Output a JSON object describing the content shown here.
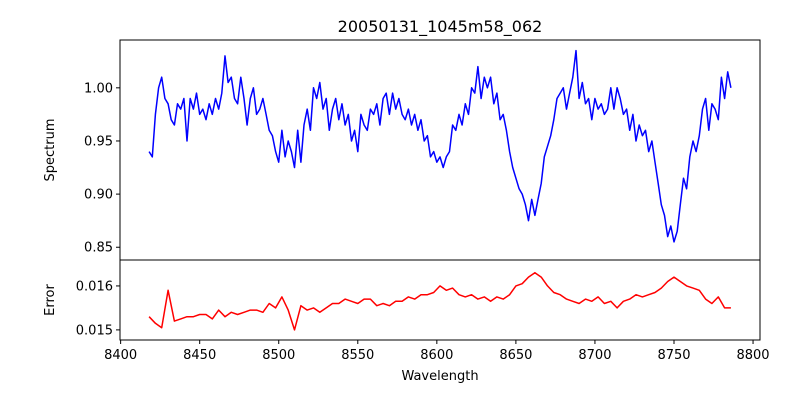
{
  "chart_data": [
    {
      "type": "line",
      "title": "20050131_1045m58_062",
      "xlabel": "",
      "ylabel": "Spectrum",
      "xlim": [
        8399.6,
        8804.4
      ],
      "ylim": [
        0.838,
        1.045
      ],
      "xticks": [
        8400,
        8450,
        8500,
        8550,
        8600,
        8650,
        8700,
        8750,
        8800
      ],
      "yticks": [
        0.85,
        0.9,
        0.95,
        1.0
      ],
      "ytick_labels": [
        "0.85",
        "0.90",
        "0.95",
        "1.00"
      ],
      "color": "#0000ff",
      "x_start": 8418,
      "x_step": 2,
      "values": [
        0.94,
        0.935,
        0.975,
        1.0,
        1.01,
        0.99,
        0.985,
        0.97,
        0.965,
        0.985,
        0.98,
        0.99,
        0.95,
        0.99,
        0.98,
        0.995,
        0.975,
        0.98,
        0.97,
        0.985,
        0.975,
        0.99,
        0.98,
        0.995,
        1.03,
        1.005,
        1.01,
        0.99,
        0.985,
        1.01,
        0.99,
        0.965,
        0.99,
        1.0,
        0.975,
        0.98,
        0.99,
        0.975,
        0.96,
        0.955,
        0.94,
        0.93,
        0.96,
        0.935,
        0.95,
        0.94,
        0.925,
        0.96,
        0.93,
        0.965,
        0.98,
        0.96,
        1.0,
        0.99,
        1.005,
        0.98,
        0.99,
        0.96,
        0.98,
        0.99,
        0.97,
        0.985,
        0.965,
        0.975,
        0.95,
        0.96,
        0.94,
        0.975,
        0.965,
        0.96,
        0.98,
        0.975,
        0.985,
        0.965,
        0.99,
        0.995,
        0.975,
        0.995,
        0.98,
        0.99,
        0.975,
        0.97,
        0.98,
        0.965,
        0.975,
        0.96,
        0.97,
        0.95,
        0.955,
        0.935,
        0.94,
        0.93,
        0.935,
        0.925,
        0.935,
        0.94,
        0.965,
        0.96,
        0.975,
        0.965,
        0.985,
        0.975,
        1.0,
        0.995,
        1.02,
        0.99,
        1.01,
        1.0,
        1.01,
        0.985,
        0.995,
        0.97,
        0.975,
        0.96,
        0.94,
        0.925,
        0.915,
        0.905,
        0.9,
        0.89,
        0.875,
        0.895,
        0.88,
        0.895,
        0.91,
        0.935,
        0.945,
        0.955,
        0.97,
        0.99,
        0.995,
        1.0,
        0.98,
        0.995,
        1.01,
        1.035,
        0.99,
        1.005,
        0.985,
        0.99,
        0.97,
        0.99,
        0.98,
        0.985,
        0.975,
        0.98,
        1.0,
        0.98,
        1.0,
        0.99,
        0.975,
        0.98,
        0.96,
        0.975,
        0.95,
        0.965,
        0.955,
        0.96,
        0.94,
        0.95,
        0.93,
        0.91,
        0.89,
        0.88,
        0.86,
        0.87,
        0.855,
        0.865,
        0.89,
        0.915,
        0.905,
        0.935,
        0.95,
        0.94,
        0.955,
        0.98,
        0.99,
        0.96,
        0.985,
        0.98,
        0.97,
        1.01,
        0.99,
        1.015,
        1.0
      ]
    },
    {
      "type": "line",
      "title": "",
      "xlabel": "Wavelength",
      "ylabel": "Error",
      "xlim": [
        8399.6,
        8804.4
      ],
      "ylim": [
        0.01477,
        0.01659
      ],
      "xticks": [
        8400,
        8450,
        8500,
        8550,
        8600,
        8650,
        8700,
        8750,
        8800
      ],
      "yticks": [
        0.015,
        0.016
      ],
      "ytick_labels": [
        "0.015",
        "0.016"
      ],
      "color": "#ff0000",
      "x_start": 8418,
      "x_step": 4,
      "values": [
        0.0153,
        0.01515,
        0.01505,
        0.0159,
        0.0152,
        0.01525,
        0.0153,
        0.0153,
        0.01535,
        0.01535,
        0.01525,
        0.01545,
        0.0153,
        0.0154,
        0.01535,
        0.0154,
        0.01545,
        0.01545,
        0.0154,
        0.0156,
        0.0155,
        0.01575,
        0.01545,
        0.015,
        0.01555,
        0.01545,
        0.0155,
        0.0154,
        0.0155,
        0.0156,
        0.0156,
        0.0157,
        0.01565,
        0.0156,
        0.0157,
        0.0157,
        0.01555,
        0.0156,
        0.01555,
        0.01565,
        0.01565,
        0.01575,
        0.0157,
        0.0158,
        0.0158,
        0.01585,
        0.016,
        0.0159,
        0.01595,
        0.0158,
        0.01575,
        0.0158,
        0.0157,
        0.01575,
        0.01565,
        0.01575,
        0.0157,
        0.0158,
        0.016,
        0.01605,
        0.0162,
        0.0163,
        0.0162,
        0.016,
        0.01585,
        0.0158,
        0.0157,
        0.01565,
        0.0156,
        0.0157,
        0.01565,
        0.01575,
        0.0156,
        0.01565,
        0.0155,
        0.01565,
        0.0157,
        0.0158,
        0.01575,
        0.0158,
        0.01585,
        0.01595,
        0.0161,
        0.0162,
        0.0161,
        0.016,
        0.01595,
        0.0159,
        0.0157,
        0.0156,
        0.01575,
        0.0155,
        0.0155
      ]
    }
  ]
}
